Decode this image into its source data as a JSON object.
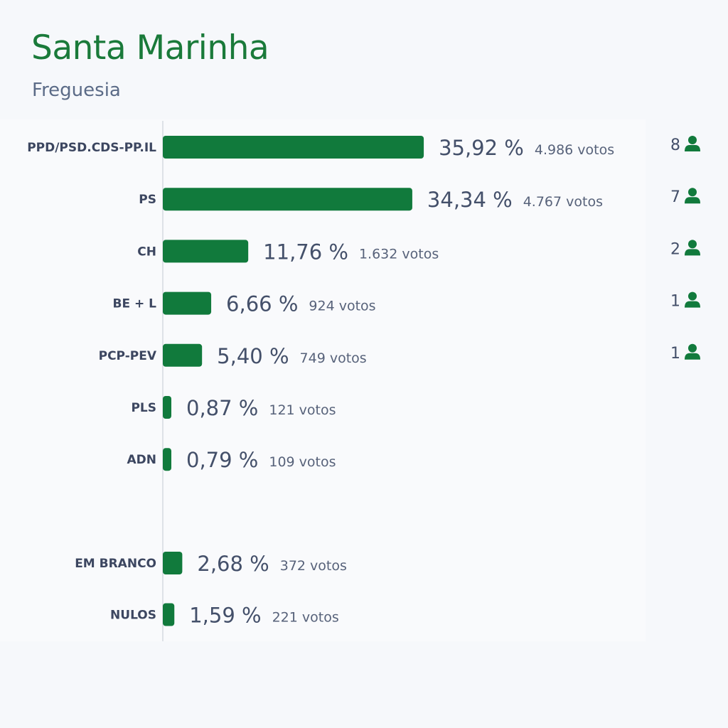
{
  "header": {
    "title": "Santa Marinha",
    "subtitle": "Freguesia"
  },
  "colors": {
    "bar": "#117a3c",
    "icon": "#117a3c",
    "title": "#1a7a3a",
    "axis": "#d5d9e0"
  },
  "icons": {
    "seat": "user-icon"
  },
  "chart_data": {
    "type": "bar",
    "orientation": "horizontal",
    "title": "Santa Marinha",
    "subtitle": "Freguesia",
    "xlabel": "",
    "ylabel": "",
    "xlim": [
      0,
      36.5
    ],
    "grid": false,
    "legend": "none",
    "percent_suffix": " %",
    "votes_suffix": " votos",
    "categories": [
      "PPD/PSD.CDS-PP.IL",
      "PS",
      "CH",
      "BE + L",
      "PCP-PEV",
      "PLS",
      "ADN",
      "EM BRANCO",
      "NULOS"
    ],
    "values": [
      35.92,
      34.34,
      11.76,
      6.66,
      5.4,
      0.87,
      0.79,
      2.68,
      1.59
    ],
    "value_labels": [
      "35,92",
      "34,34",
      "11,76",
      "6,66",
      "5,40",
      "0,87",
      "0,79",
      "2,68",
      "1,59"
    ],
    "votes": [
      "4.986",
      "4.767",
      "1.632",
      "924",
      "749",
      "121",
      "109",
      "372",
      "221"
    ],
    "seats": [
      8,
      7,
      2,
      1,
      1,
      null,
      null,
      null,
      null
    ],
    "groups": [
      "party",
      "party",
      "party",
      "party",
      "party",
      "party",
      "party",
      "other",
      "other"
    ]
  }
}
